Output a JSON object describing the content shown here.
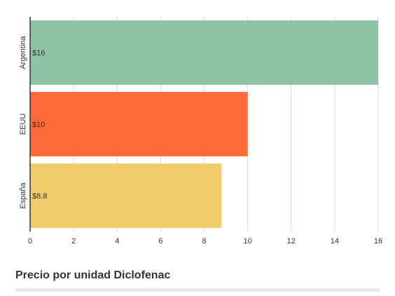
{
  "chart_data": {
    "type": "bar",
    "orientation": "horizontal",
    "title": "Precio por unidad Diclofenac",
    "categories": [
      "Argentina",
      "EEUU",
      "España"
    ],
    "values": [
      16,
      10,
      8.8
    ],
    "data_labels": [
      "$16",
      "$10",
      "$8.8"
    ],
    "colors": [
      "#8fc3a5",
      "#fd6a37",
      "#efcb6a"
    ],
    "xlim": [
      0,
      16
    ],
    "xticks": [
      0,
      2,
      4,
      6,
      8,
      10,
      12,
      14,
      16
    ],
    "grid": true,
    "legend": "none"
  }
}
